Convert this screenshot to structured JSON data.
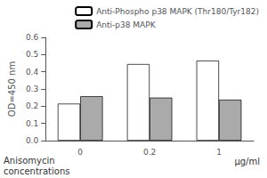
{
  "chart_data": {
    "type": "bar",
    "ylabel": "OD=450 nm",
    "xlabel": "Anisomycin\nconcentrations",
    "annotations": [
      "μg/ml"
    ],
    "categories": [
      "0",
      "0.2",
      "1"
    ],
    "series": [
      {
        "name": "Anti-Phospho p38 MAPK (Thr180/Tyr182)",
        "color": "white",
        "values": [
          0.215,
          0.445,
          0.465
        ]
      },
      {
        "name": "Anti-p38 MAPK",
        "color": "#aaaaaa",
        "values": [
          0.258,
          0.25,
          0.238
        ]
      }
    ],
    "ylim": [
      0.0,
      0.6
    ],
    "yticks": [
      {
        "value": 0.0,
        "label": "0.0"
      },
      0.1,
      0.2,
      0.3,
      0.4,
      0.5,
      0.6
    ],
    "grid": false,
    "legend": "upper right"
  }
}
